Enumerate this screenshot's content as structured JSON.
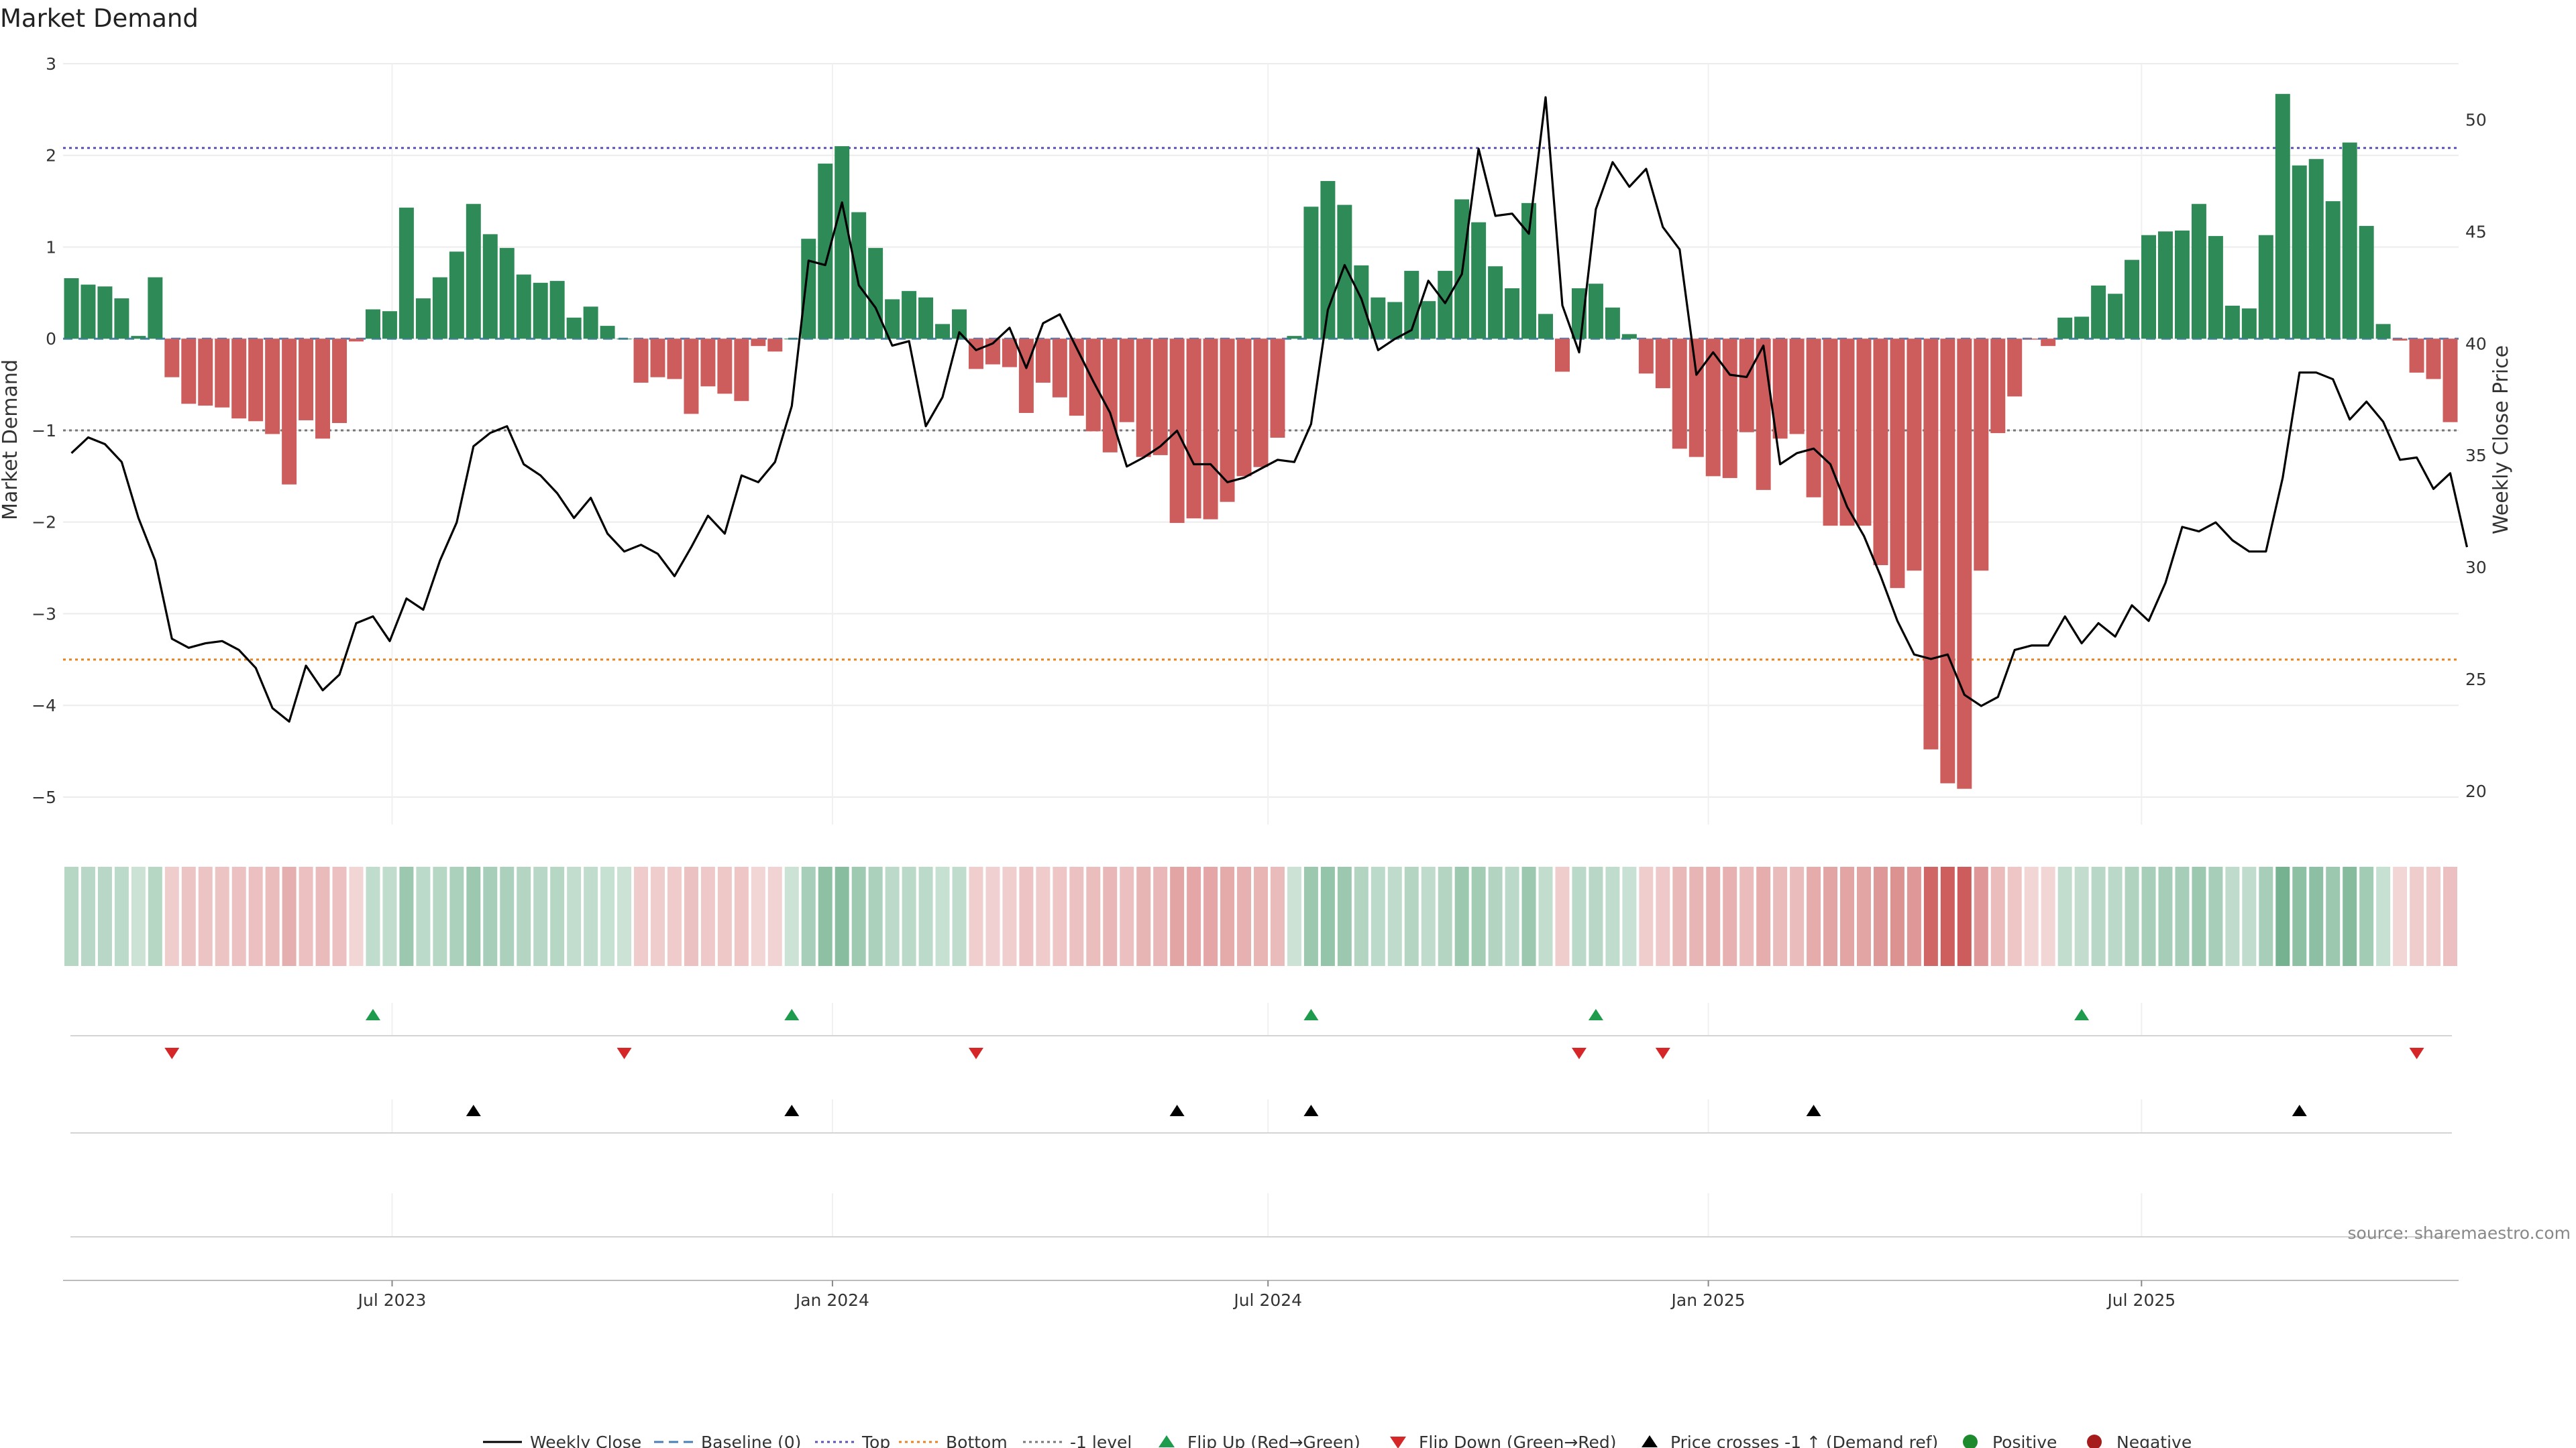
{
  "chart_data": {
    "type": "bar",
    "title": "Market Demand",
    "ylabel": "Market Demand",
    "y2label": "Weekly Close Price",
    "ylim": [
      -5.3,
      3.0
    ],
    "yticks": [
      3,
      2,
      1,
      0,
      -1,
      -2,
      -3,
      -4,
      -5
    ],
    "ytick_labels": [
      "3",
      "2",
      "1",
      "0",
      "−1",
      "−2",
      "−3",
      "−4",
      "−5"
    ],
    "y2lim": [
      18.5,
      52.5
    ],
    "y2ticks": [
      50,
      45,
      40,
      35,
      30,
      25,
      20
    ],
    "x_start": "2023-02-17",
    "x_step_days": 7,
    "xticks": [
      {
        "date": "2023-07-01",
        "label": "Jul 2023"
      },
      {
        "date": "2024-01-01",
        "label": "Jan 2024"
      },
      {
        "date": "2024-07-01",
        "label": "Jul 2024"
      },
      {
        "date": "2025-01-01",
        "label": "Jan 2025"
      },
      {
        "date": "2025-07-01",
        "label": "Jul 2025"
      }
    ],
    "demand": [
      0.66,
      0.59,
      0.57,
      0.44,
      0.03,
      0.67,
      -0.42,
      -0.71,
      -0.73,
      -0.75,
      -0.87,
      -0.9,
      -1.04,
      -1.59,
      -0.89,
      -1.09,
      -0.92,
      -0.03,
      0.32,
      0.3,
      1.43,
      0.44,
      0.67,
      0.95,
      1.47,
      1.14,
      0.99,
      0.7,
      0.61,
      0.63,
      0.23,
      0.35,
      0.14,
      0,
      -0.48,
      -0.42,
      -0.44,
      -0.82,
      -0.52,
      -0.6,
      -0.68,
      -0.08,
      -0.14,
      0,
      1.09,
      1.91,
      2.1,
      1.38,
      0.99,
      0.43,
      0.52,
      0.45,
      0.16,
      0.32,
      -0.33,
      -0.28,
      -0.31,
      -0.81,
      -0.48,
      -0.64,
      -0.84,
      -1.01,
      -1.24,
      -0.91,
      -1.29,
      -1.27,
      -2.01,
      -1.96,
      -1.97,
      -1.78,
      -1.5,
      -1.4,
      -1.08,
      0.03,
      1.44,
      1.72,
      1.46,
      0.8,
      0.45,
      0.4,
      0.74,
      0.41,
      0.74,
      1.52,
      1.27,
      0.79,
      0.55,
      1.48,
      0.27,
      -0.36,
      0.55,
      0.6,
      0.34,
      0.05,
      -0.38,
      -0.54,
      -1.2,
      -1.29,
      -1.5,
      -1.52,
      -1.02,
      -1.65,
      -1.09,
      -1.04,
      -1.73,
      -2.04,
      -2.04,
      -2.04,
      -2.47,
      -2.72,
      -2.53,
      -4.48,
      -4.85,
      -4.91,
      -2.53,
      -1.03,
      -0.63,
      -0.01,
      -0.08,
      0.23,
      0.24,
      0.58,
      0.49,
      0.86,
      1.13,
      1.17,
      1.18,
      1.47,
      1.12,
      0.36,
      0.33,
      1.13,
      2.67,
      1.89,
      1.96,
      1.5,
      2.14,
      1.23,
      0.16,
      -0.02,
      -0.37,
      -0.44,
      -0.91
    ],
    "price": [
      35.1,
      35.8,
      35.5,
      34.7,
      32.2,
      30.3,
      26.8,
      26.4,
      26.6,
      26.7,
      26.3,
      25.5,
      23.7,
      23.1,
      25.6,
      24.5,
      25.2,
      27.5,
      27.8,
      26.7,
      28.6,
      28.1,
      30.3,
      32.0,
      35.4,
      36.0,
      36.3,
      34.6,
      34.1,
      33.3,
      32.2,
      33.1,
      31.5,
      30.7,
      31.0,
      30.6,
      29.6,
      30.9,
      32.3,
      31.5,
      34.1,
      33.8,
      34.7,
      37.2,
      43.7,
      43.5,
      46.3,
      42.6,
      41.6,
      39.9,
      40.1,
      36.3,
      37.6,
      40.5,
      39.7,
      40.0,
      40.7,
      38.9,
      40.9,
      41.3,
      39.8,
      38.3,
      36.9,
      34.5,
      34.9,
      35.4,
      36.1,
      34.6,
      34.6,
      33.8,
      34.0,
      34.4,
      34.8,
      34.7,
      36.4,
      41.5,
      43.5,
      42.0,
      39.7,
      40.2,
      40.6,
      42.8,
      41.8,
      43.1,
      48.7,
      45.7,
      45.8,
      44.9,
      51.0,
      41.7,
      39.6,
      46.0,
      48.1,
      47.0,
      47.8,
      45.2,
      44.2,
      38.6,
      39.6,
      38.6,
      38.5,
      39.9,
      34.6,
      35.1,
      35.3,
      34.6,
      32.7,
      31.4,
      29.6,
      27.6,
      26.1,
      25.9,
      26.1,
      24.3,
      23.8,
      24.2,
      26.3,
      26.5,
      26.5,
      27.8,
      26.6,
      27.5,
      26.9,
      28.3,
      27.6,
      29.3,
      31.8,
      31.6,
      32.0,
      31.2,
      30.7,
      30.7,
      34.0,
      38.7,
      38.7,
      38.4,
      36.6,
      37.4,
      36.5,
      34.8,
      34.9,
      33.5,
      34.2,
      30.9
    ],
    "hlines": [
      {
        "name": "Top",
        "value": 2.08,
        "color": "#5a52b8",
        "style": "dotted"
      },
      {
        "name": "-1 level",
        "value": -1.0,
        "color": "#777777",
        "style": "dotted"
      },
      {
        "name": "Bottom",
        "value": -3.5,
        "color": "#e8821e",
        "style": "dotted"
      },
      {
        "name": "Baseline (0)",
        "value": 0,
        "color": "#4a7fb5",
        "style": "dashed"
      }
    ],
    "flip_up_weeks": [
      18,
      43,
      74,
      91,
      120
    ],
    "flip_down_weeks": [
      6,
      33,
      54,
      90,
      95,
      140
    ],
    "price_cross_weeks": [
      24,
      43,
      66,
      74,
      104,
      133
    ],
    "colors": {
      "positive": "#2e8b57",
      "negative": "#cd5c5c",
      "price": "#000000"
    },
    "grid": true,
    "legend_position": "bottom"
  },
  "legend": [
    {
      "label": "Weekly Close",
      "icon": "line-icon",
      "color": "#000000"
    },
    {
      "label": "Baseline (0)",
      "icon": "dashed-line-icon",
      "color": "#4a7fb5"
    },
    {
      "label": "Top",
      "icon": "dotted-line-icon",
      "color": "#5a52b8"
    },
    {
      "label": "Bottom",
      "icon": "dotted-line-icon",
      "color": "#e8821e"
    },
    {
      "label": "-1 level",
      "icon": "dotted-line-icon",
      "color": "#777777"
    },
    {
      "label": "Flip Up (Red→Green)",
      "icon": "triangle-up-icon",
      "color": "#1e9b4c"
    },
    {
      "label": "Flip Down (Green→Red)",
      "icon": "triangle-down-icon",
      "color": "#d62728"
    },
    {
      "label": "Price crosses -1 ↑ (Demand ref)",
      "icon": "triangle-up-icon",
      "color": "#000000"
    },
    {
      "label": "Positive",
      "icon": "circle-icon",
      "color": "#1e8a2e"
    },
    {
      "label": "Negative",
      "icon": "circle-icon",
      "color": "#a61c1c"
    }
  ],
  "source": "source: sharemaestro.com"
}
